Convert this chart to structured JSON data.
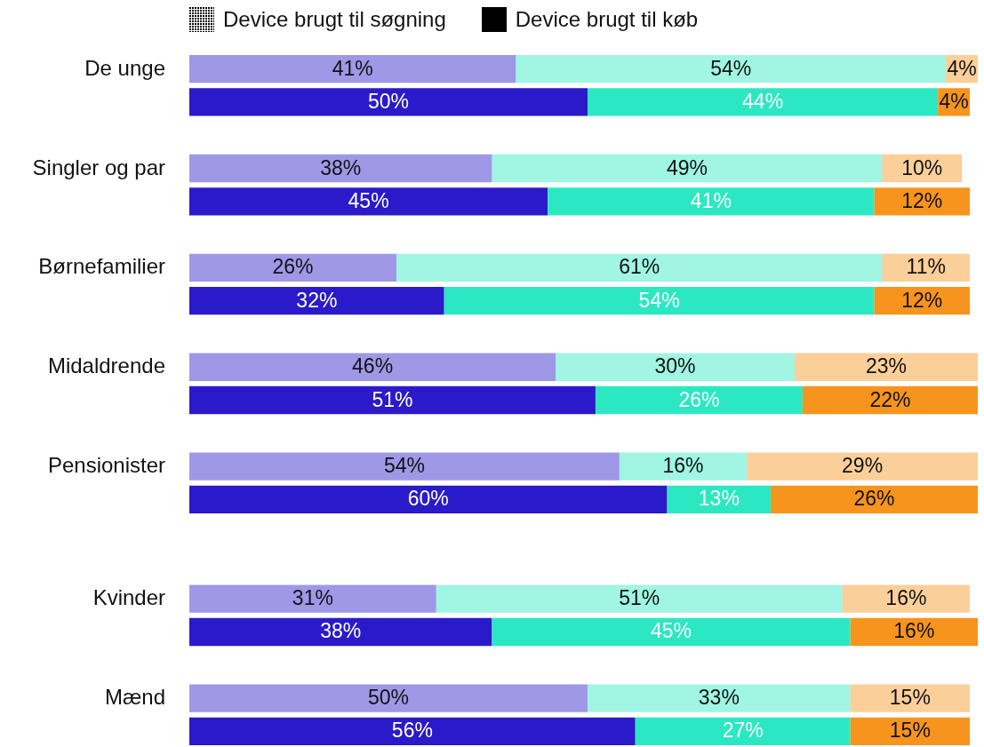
{
  "chart_data": {
    "type": "bar",
    "orientation": "horizontal",
    "stacked": true,
    "categories": [
      "De unge",
      null,
      "Singler og par",
      null,
      "Børnefamilier",
      null,
      "Midaldrende",
      null,
      "Pensionister",
      null,
      "Kvinder",
      null,
      "Mænd",
      null
    ],
    "annotations": [
      "Device brugt til søgning",
      "Device brugt til køb"
    ],
    "series": [
      {
        "color": "#2a1ac9",
        "values": [
          41,
          null,
          38,
          null,
          26,
          null,
          46,
          null,
          54,
          null,
          31,
          null,
          50,
          null
        ],
        "value_labels": [
          "41%",
          null,
          "38%",
          null,
          "26%",
          null,
          "46%",
          null,
          "54%",
          null,
          "31%",
          null,
          "50%",
          null
        ]
      },
      {
        "color": "#2ce8c2",
        "values": [
          54,
          null,
          49,
          null,
          61,
          null,
          30,
          null,
          16,
          null,
          51,
          null,
          33,
          null
        ],
        "value_labels": [
          "54%",
          null,
          "49%",
          null,
          "61%",
          null,
          "30%",
          null,
          "16%",
          null,
          "51%",
          null,
          "33%",
          null
        ]
      },
      {
        "color": "#f7941d",
        "values": [
          4,
          null,
          10,
          null,
          11,
          null,
          23,
          null,
          29,
          null,
          16,
          null,
          15,
          null
        ],
        "value_labels": [
          "4%",
          null,
          "10%",
          null,
          "11%",
          null,
          "23%",
          null,
          "29%",
          null,
          "16%",
          null,
          "15%",
          null
        ]
      },
      {
        "color": "#2a1ac9",
        "values": [
          null,
          50,
          null,
          45,
          null,
          32,
          null,
          51,
          null,
          60,
          null,
          38,
          null,
          56
        ],
        "value_labels": [
          null,
          "50%",
          null,
          "45%",
          null,
          "32%",
          null,
          "51%",
          null,
          "60%",
          null,
          "38%",
          null,
          "56%"
        ]
      },
      {
        "color": "#2ce8c2",
        "values": [
          null,
          44,
          null,
          41,
          null,
          54,
          null,
          26,
          null,
          13,
          null,
          45,
          null,
          27
        ],
        "value_labels": [
          null,
          "44%",
          null,
          "41%",
          null,
          "54%",
          null,
          "26%",
          null,
          "13%",
          null,
          "45%",
          null,
          "27%"
        ]
      },
      {
        "color": "#f7941d",
        "values": [
          null,
          4,
          null,
          12,
          null,
          12,
          null,
          22,
          null,
          26,
          null,
          16,
          null,
          15
        ],
        "value_labels": [
          null,
          "4%",
          null,
          "12%",
          null,
          "12%",
          null,
          "22%",
          null,
          "26%",
          null,
          "16%",
          null,
          "15%"
        ]
      }
    ]
  }
}
